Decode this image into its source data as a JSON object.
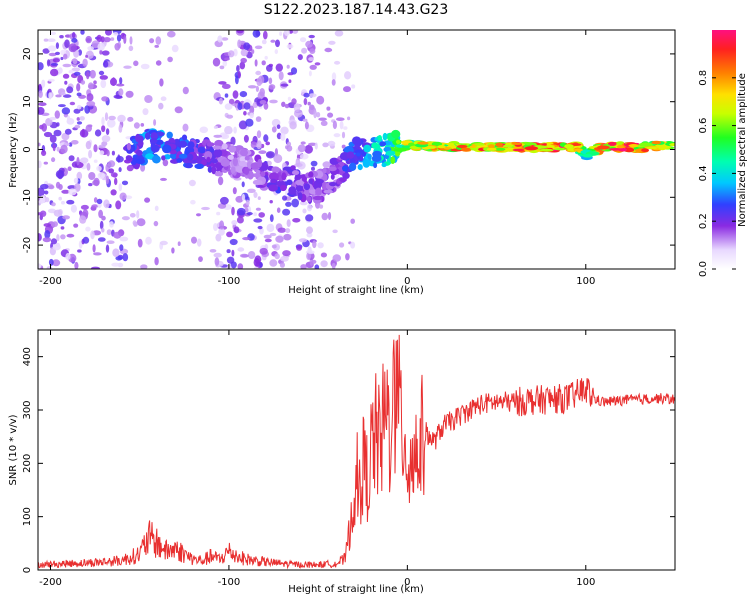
{
  "title": "S122.2023.187.14.43.G23",
  "chart_data": [
    {
      "type": "heatmap",
      "xlabel": "Height of straight line (km)",
      "ylabel": "Frequency (Hz)",
      "xlim": [
        -207,
        150
      ],
      "ylim": [
        -25,
        25
      ],
      "x_ticks": [
        -200,
        -100,
        0,
        100
      ],
      "y_ticks": [
        -20,
        -10,
        0,
        10,
        20
      ],
      "colorbar": {
        "label": "Normalized spectral amplitude",
        "range": [
          0,
          1
        ],
        "ticks": [
          "0.0",
          "0.2",
          "0.4",
          "0.6",
          "0.8"
        ]
      },
      "description_points": {
        "ridge_x": [
          -207,
          -160,
          -145,
          -130,
          -115,
          -100,
          -90,
          -80,
          -70,
          -60,
          -50,
          -40,
          -30,
          -20,
          -10,
          0,
          20,
          50,
          80,
          95,
          100,
          110,
          130,
          150
        ],
        "ridge_freq": [
          0,
          -2,
          1,
          0,
          -1,
          -2,
          -3,
          -5,
          -6,
          -7,
          -8,
          -5,
          -1,
          -1,
          0,
          1,
          0.5,
          0.5,
          0.5,
          0.5,
          -1,
          0.5,
          0.5,
          1
        ],
        "ridge_amplitude": [
          0.05,
          0.2,
          0.35,
          0.3,
          0.25,
          0.15,
          0.15,
          0.2,
          0.25,
          0.2,
          0.2,
          0.2,
          0.3,
          0.4,
          0.5,
          0.7,
          0.8,
          0.9,
          0.95,
          0.9,
          0.5,
          0.95,
          0.9,
          0.6
        ]
      }
    },
    {
      "type": "line",
      "xlabel": "Height of straight line (km)",
      "ylabel": "SNR (10 * v/v)",
      "xlim": [
        -207,
        150
      ],
      "ylim": [
        0,
        450
      ],
      "x_ticks": [
        -200,
        -100,
        0,
        100
      ],
      "y_ticks": [
        0,
        100,
        200,
        300,
        400
      ],
      "series": [
        {
          "color": "#e83030",
          "x": [
            -207,
            -190,
            -170,
            -160,
            -150,
            -145,
            -140,
            -135,
            -130,
            -125,
            -120,
            -115,
            -110,
            -105,
            -100,
            -95,
            -90,
            -80,
            -70,
            -60,
            -50,
            -40,
            -35,
            -32,
            -30,
            -28,
            -25,
            -22,
            -20,
            -18,
            -15,
            -12,
            -10,
            -8,
            -5,
            -2,
            0,
            5,
            10,
            15,
            20,
            30,
            40,
            50,
            60,
            70,
            80,
            90,
            95,
            100,
            105,
            110,
            120,
            130,
            140,
            150
          ],
          "y": [
            10,
            12,
            15,
            18,
            30,
            60,
            50,
            35,
            40,
            30,
            20,
            18,
            25,
            20,
            35,
            25,
            20,
            15,
            12,
            10,
            10,
            12,
            20,
            80,
            150,
            120,
            200,
            170,
            230,
            250,
            230,
            300,
            260,
            320,
            300,
            270,
            200,
            220,
            260,
            240,
            270,
            290,
            310,
            315,
            315,
            318,
            320,
            322,
            330,
            340,
            320,
            315,
            318,
            320,
            322,
            320
          ]
        }
      ]
    }
  ]
}
